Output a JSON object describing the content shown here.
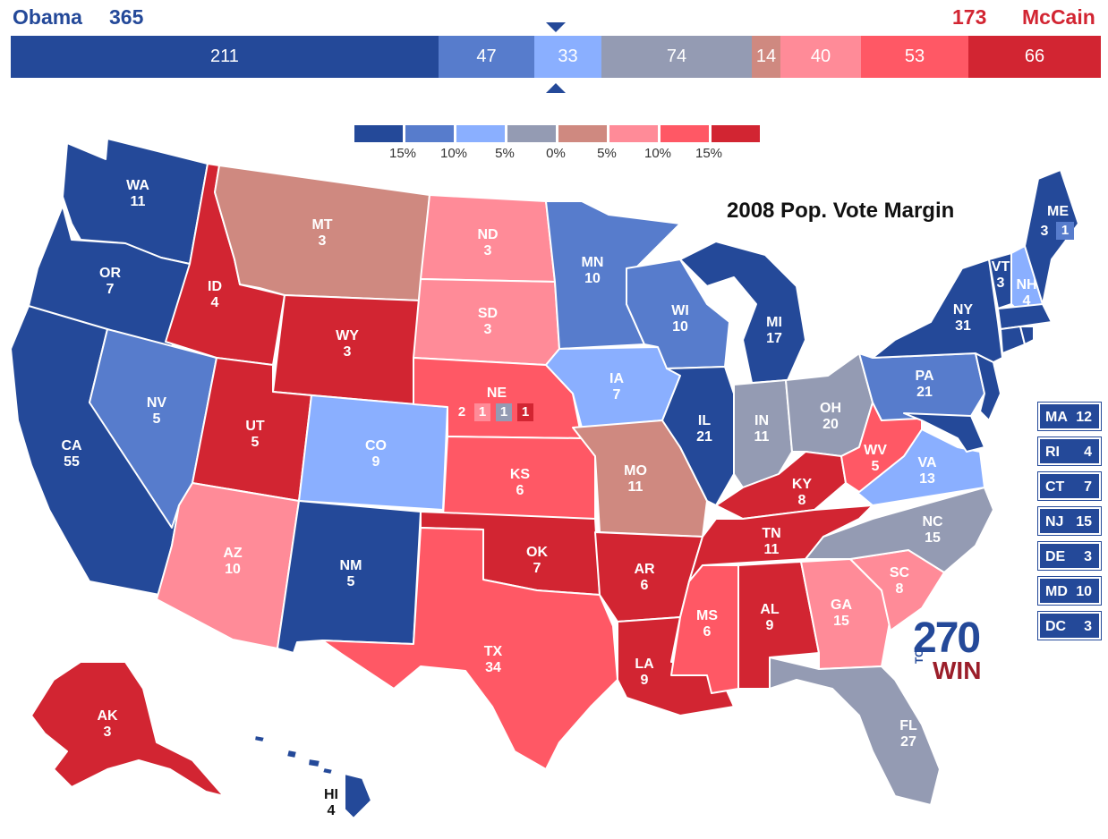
{
  "header": {
    "obama_name": "Obama",
    "obama_ev": "365",
    "mccain_ev": "173",
    "mccain_name": "McCain"
  },
  "bar_segments": [
    {
      "label": "211",
      "value": 211,
      "color": "#244999"
    },
    {
      "label": "47",
      "value": 47,
      "color": "#577ccc"
    },
    {
      "label": "33",
      "value": 33,
      "color": "#8aafff"
    },
    {
      "label": "74",
      "value": 74,
      "color": "#949bb3"
    },
    {
      "label": "14",
      "value": 14,
      "color": "#cf8980"
    },
    {
      "label": "40",
      "value": 40,
      "color": "#ff8b98"
    },
    {
      "label": "53",
      "value": 53,
      "color": "#ff5865"
    },
    {
      "label": "66",
      "value": 66,
      "color": "#d22532"
    }
  ],
  "legend": {
    "colors": [
      "#244999",
      "#577ccc",
      "#8aafff",
      "#949bb3",
      "#cf8980",
      "#ff8b98",
      "#ff5865",
      "#d22532"
    ],
    "labels": [
      "15%",
      "10%",
      "5%",
      "0%",
      "5%",
      "10%",
      "15%"
    ]
  },
  "map_title": "2008 Pop. Vote Margin",
  "states": [
    {
      "abbr": "WA",
      "ev": "11"
    },
    {
      "abbr": "OR",
      "ev": "7"
    },
    {
      "abbr": "CA",
      "ev": "55"
    },
    {
      "abbr": "ID",
      "ev": "4"
    },
    {
      "abbr": "NV",
      "ev": "5"
    },
    {
      "abbr": "MT",
      "ev": "3"
    },
    {
      "abbr": "WY",
      "ev": "3"
    },
    {
      "abbr": "UT",
      "ev": "5"
    },
    {
      "abbr": "AZ",
      "ev": "10"
    },
    {
      "abbr": "CO",
      "ev": "9"
    },
    {
      "abbr": "NM",
      "ev": "5"
    },
    {
      "abbr": "ND",
      "ev": "3"
    },
    {
      "abbr": "SD",
      "ev": "3"
    },
    {
      "abbr": "NE",
      "ev": ""
    },
    {
      "abbr": "KS",
      "ev": "6"
    },
    {
      "abbr": "OK",
      "ev": "7"
    },
    {
      "abbr": "TX",
      "ev": "34"
    },
    {
      "abbr": "MN",
      "ev": "10"
    },
    {
      "abbr": "IA",
      "ev": "7"
    },
    {
      "abbr": "MO",
      "ev": "11"
    },
    {
      "abbr": "AR",
      "ev": "6"
    },
    {
      "abbr": "LA",
      "ev": "9"
    },
    {
      "abbr": "WI",
      "ev": "10"
    },
    {
      "abbr": "IL",
      "ev": "21"
    },
    {
      "abbr": "MI",
      "ev": "17"
    },
    {
      "abbr": "IN",
      "ev": "11"
    },
    {
      "abbr": "OH",
      "ev": "20"
    },
    {
      "abbr": "KY",
      "ev": "8"
    },
    {
      "abbr": "TN",
      "ev": "11"
    },
    {
      "abbr": "MS",
      "ev": "6"
    },
    {
      "abbr": "AL",
      "ev": "9"
    },
    {
      "abbr": "GA",
      "ev": "15"
    },
    {
      "abbr": "FL",
      "ev": "27"
    },
    {
      "abbr": "SC",
      "ev": "8"
    },
    {
      "abbr": "NC",
      "ev": "15"
    },
    {
      "abbr": "VA",
      "ev": "13"
    },
    {
      "abbr": "WV",
      "ev": "5"
    },
    {
      "abbr": "PA",
      "ev": "21"
    },
    {
      "abbr": "NY",
      "ev": "31"
    },
    {
      "abbr": "VT",
      "ev": "3"
    },
    {
      "abbr": "NH",
      "ev": "4"
    },
    {
      "abbr": "ME",
      "ev": "3"
    },
    {
      "abbr": "AK",
      "ev": "3"
    },
    {
      "abbr": "HI",
      "ev": "4"
    }
  ],
  "nebraska_districts": [
    "2",
    "1",
    "1",
    "1"
  ],
  "maine_district": "1",
  "side_boxes": [
    {
      "abbr": "MA",
      "ev": "12"
    },
    {
      "abbr": "RI",
      "ev": "4"
    },
    {
      "abbr": "CT",
      "ev": "7"
    },
    {
      "abbr": "NJ",
      "ev": "15"
    },
    {
      "abbr": "DE",
      "ev": "3"
    },
    {
      "abbr": "MD",
      "ev": "10"
    },
    {
      "abbr": "DC",
      "ev": "3"
    }
  ],
  "logo": {
    "number": "270",
    "to": "TO",
    "win": "WIN"
  }
}
